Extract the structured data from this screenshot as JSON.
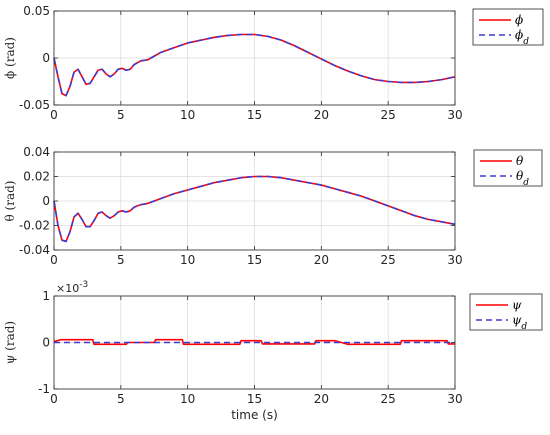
{
  "chart_data": [
    {
      "type": "line",
      "ylabel": "ϕ (rad)",
      "xlim": [
        0,
        30
      ],
      "ylim": [
        -0.05,
        0.05
      ],
      "xticks": [
        "0",
        "5",
        "10",
        "15",
        "20",
        "25",
        "30"
      ],
      "yticks": [
        "-0.05",
        "0",
        "0.05"
      ],
      "grid": true,
      "legend_position": "outside-right",
      "x": [
        0,
        0.3,
        0.6,
        0.9,
        1.2,
        1.5,
        1.8,
        2.1,
        2.4,
        2.7,
        3.0,
        3.3,
        3.6,
        3.9,
        4.2,
        4.5,
        4.8,
        5.1,
        5.4,
        5.7,
        6.0,
        6.5,
        7.0,
        7.5,
        8,
        9,
        10,
        11,
        12,
        13,
        14,
        15,
        16,
        17,
        18,
        19,
        20,
        21,
        22,
        23,
        24,
        25,
        26,
        27,
        28,
        29,
        30
      ],
      "series": [
        {
          "name": "ϕ",
          "color": "#ff0000",
          "style": "solid",
          "values": [
            0,
            -0.02,
            -0.038,
            -0.04,
            -0.03,
            -0.015,
            -0.012,
            -0.02,
            -0.028,
            -0.027,
            -0.02,
            -0.013,
            -0.012,
            -0.017,
            -0.02,
            -0.017,
            -0.012,
            -0.011,
            -0.013,
            -0.012,
            -0.007,
            -0.003,
            -0.002,
            0.002,
            0.006,
            0.011,
            0.016,
            0.019,
            0.022,
            0.024,
            0.025,
            0.025,
            0.023,
            0.019,
            0.013,
            0.006,
            -0.001,
            -0.008,
            -0.014,
            -0.019,
            -0.023,
            -0.025,
            -0.026,
            -0.026,
            -0.025,
            -0.023,
            -0.02
          ]
        },
        {
          "name": "ϕ_d",
          "color": "#3b3bd6",
          "style": "dashed",
          "values": [
            0,
            -0.02,
            -0.038,
            -0.04,
            -0.03,
            -0.015,
            -0.012,
            -0.02,
            -0.028,
            -0.027,
            -0.02,
            -0.013,
            -0.012,
            -0.017,
            -0.02,
            -0.017,
            -0.012,
            -0.011,
            -0.013,
            -0.012,
            -0.007,
            -0.003,
            -0.002,
            0.002,
            0.006,
            0.011,
            0.016,
            0.019,
            0.022,
            0.024,
            0.025,
            0.025,
            0.023,
            0.019,
            0.013,
            0.006,
            -0.001,
            -0.008,
            -0.014,
            -0.019,
            -0.023,
            -0.025,
            -0.026,
            -0.026,
            -0.025,
            -0.023,
            -0.02
          ]
        }
      ]
    },
    {
      "type": "line",
      "ylabel": "θ (rad)",
      "xlim": [
        0,
        30
      ],
      "ylim": [
        -0.04,
        0.04
      ],
      "xticks": [
        "0",
        "5",
        "10",
        "15",
        "20",
        "25",
        "30"
      ],
      "yticks": [
        "-0.04",
        "-0.02",
        "0",
        "0.02",
        "0.04"
      ],
      "grid": true,
      "legend_position": "outside-right",
      "x": [
        0,
        0.3,
        0.6,
        0.9,
        1.2,
        1.5,
        1.8,
        2.1,
        2.4,
        2.7,
        3.0,
        3.3,
        3.6,
        3.9,
        4.2,
        4.5,
        4.8,
        5.1,
        5.4,
        5.7,
        6.0,
        6.5,
        7.0,
        7.5,
        8,
        9,
        10,
        11,
        12,
        13,
        14,
        15,
        16,
        17,
        18,
        19,
        20,
        21,
        22,
        23,
        24,
        25,
        26,
        27,
        28,
        29,
        30
      ],
      "series": [
        {
          "name": "θ",
          "color": "#ff0000",
          "style": "solid",
          "values": [
            0,
            -0.02,
            -0.032,
            -0.033,
            -0.025,
            -0.013,
            -0.01,
            -0.015,
            -0.021,
            -0.021,
            -0.016,
            -0.01,
            -0.009,
            -0.012,
            -0.014,
            -0.012,
            -0.009,
            -0.008,
            -0.009,
            -0.008,
            -0.005,
            -0.003,
            -0.002,
            0.0,
            0.002,
            0.006,
            0.009,
            0.012,
            0.015,
            0.017,
            0.019,
            0.02,
            0.02,
            0.019,
            0.017,
            0.015,
            0.013,
            0.01,
            0.007,
            0.004,
            0.0,
            -0.004,
            -0.008,
            -0.012,
            -0.015,
            -0.017,
            -0.019
          ]
        },
        {
          "name": "θ_d",
          "color": "#3b3bd6",
          "style": "dashed",
          "values": [
            0,
            -0.02,
            -0.032,
            -0.033,
            -0.025,
            -0.013,
            -0.01,
            -0.015,
            -0.021,
            -0.021,
            -0.016,
            -0.01,
            -0.009,
            -0.012,
            -0.014,
            -0.012,
            -0.009,
            -0.008,
            -0.009,
            -0.008,
            -0.005,
            -0.003,
            -0.002,
            0.0,
            0.002,
            0.006,
            0.009,
            0.012,
            0.015,
            0.017,
            0.019,
            0.02,
            0.02,
            0.019,
            0.017,
            0.015,
            0.013,
            0.01,
            0.007,
            0.004,
            0.0,
            -0.004,
            -0.008,
            -0.012,
            -0.015,
            -0.017,
            -0.019
          ]
        }
      ]
    },
    {
      "type": "line",
      "ylabel": "ψ (rad)",
      "xlabel": "time (s)",
      "exponent_label": "×10",
      "exponent_power": "-3",
      "xlim": [
        0,
        30
      ],
      "ylim": [
        -1,
        1
      ],
      "xticks": [
        "0",
        "5",
        "10",
        "15",
        "20",
        "25",
        "30"
      ],
      "yticks": [
        "-1",
        "0",
        "1"
      ],
      "grid": true,
      "legend_position": "outside-right",
      "x": [
        0,
        0.5,
        1,
        2,
        2.9,
        3,
        4,
        5,
        5.4,
        5.5,
        6.5,
        7.5,
        7.6,
        8,
        9,
        9.6,
        9.7,
        10,
        11,
        12,
        13,
        13.9,
        14,
        15,
        15.5,
        15.6,
        16,
        17,
        18,
        19,
        19.5,
        19.6,
        20,
        21,
        22,
        23,
        24,
        25,
        25.9,
        26,
        27,
        28,
        29,
        29.4,
        29.5,
        30
      ],
      "series": [
        {
          "name": "ψ",
          "color": "#ff0000",
          "style": "solid",
          "values": [
            0.02,
            0.06,
            0.06,
            0.06,
            0.06,
            -0.04,
            -0.04,
            -0.04,
            -0.04,
            0.0,
            0.0,
            0.0,
            0.06,
            0.06,
            0.06,
            0.06,
            -0.04,
            -0.04,
            -0.04,
            -0.04,
            -0.04,
            -0.04,
            0.04,
            0.04,
            0.04,
            -0.03,
            -0.03,
            -0.03,
            -0.03,
            -0.03,
            -0.03,
            0.04,
            0.04,
            0.04,
            -0.04,
            -0.04,
            -0.04,
            -0.04,
            -0.04,
            0.04,
            0.04,
            0.04,
            0.04,
            0.04,
            -0.03,
            -0.03
          ]
        },
        {
          "name": "ψ_d",
          "color": "#3b3bd6",
          "style": "dashed",
          "values": [
            0,
            0,
            0,
            0,
            0,
            0,
            0,
            0,
            0,
            0,
            0,
            0,
            0,
            0,
            0,
            0,
            0,
            0,
            0,
            0,
            0,
            0,
            0,
            0,
            0,
            0,
            0,
            0,
            0,
            0,
            0,
            0,
            0,
            0,
            0,
            0,
            0,
            0,
            0,
            0,
            0,
            0,
            0,
            0,
            0,
            0
          ]
        }
      ]
    }
  ]
}
